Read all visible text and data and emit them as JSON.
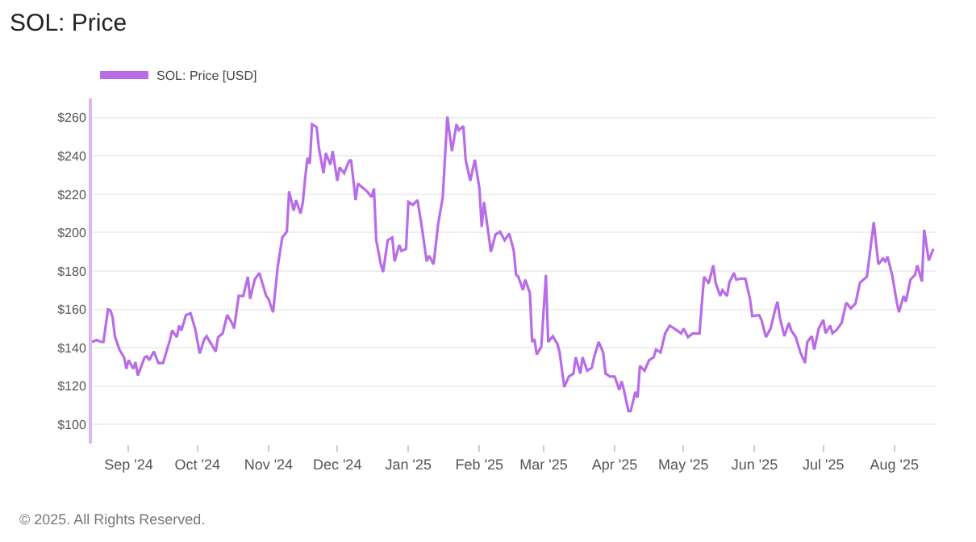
{
  "chart_data": {
    "type": "line",
    "title": "SOL: Price",
    "legend": "top left",
    "grid": "y",
    "marker": "none",
    "line_style": "solid",
    "annotations": [
      "© 2025. All Rights Reserved."
    ],
    "xlim": [
      "2024-08-16",
      "2025-08-19"
    ],
    "xticks": [
      {
        "value": "2024-09-01",
        "label": "Sep '24"
      },
      {
        "value": "2024-10-01",
        "label": "Oct '24"
      },
      {
        "value": "2024-11-01",
        "label": "Nov '24"
      },
      {
        "value": "2024-12-01",
        "label": "Dec '24"
      },
      {
        "value": "2025-01-01",
        "label": "Jan '25"
      },
      {
        "value": "2025-02-01",
        "label": "Feb '25"
      },
      {
        "value": "2025-03-01",
        "label": "Mar '25"
      },
      {
        "value": "2025-04-01",
        "label": "Apr '25"
      },
      {
        "value": "2025-05-01",
        "label": "May '25"
      },
      {
        "value": "2025-06-01",
        "label": "Jun '25"
      },
      {
        "value": "2025-07-01",
        "label": "Jul '25"
      },
      {
        "value": "2025-08-01",
        "label": "Aug '25"
      }
    ],
    "ylim": [
      90,
      270
    ],
    "yticks": [
      {
        "value": 100,
        "label": "$100"
      },
      {
        "value": 120,
        "label": "$120"
      },
      {
        "value": 140,
        "label": "$140"
      },
      {
        "value": 160,
        "label": "$160"
      },
      {
        "value": 180,
        "label": "$180"
      },
      {
        "value": 200,
        "label": "$200"
      },
      {
        "value": 220,
        "label": "$220"
      },
      {
        "value": 240,
        "label": "$240"
      },
      {
        "value": 260,
        "label": "$260"
      }
    ],
    "x": [
      "2024-08-16",
      "2024-08-18",
      "2024-08-20",
      "2024-08-21",
      "2024-08-23",
      "2024-08-24",
      "2024-08-25",
      "2024-08-26",
      "2024-08-28",
      "2024-08-30",
      "2024-08-31",
      "2024-09-01",
      "2024-09-03",
      "2024-09-04",
      "2024-09-05",
      "2024-09-08",
      "2024-09-09",
      "2024-09-10",
      "2024-09-12",
      "2024-09-14",
      "2024-09-16",
      "2024-09-19",
      "2024-09-20",
      "2024-09-22",
      "2024-09-23",
      "2024-09-24",
      "2024-09-26",
      "2024-09-28",
      "2024-09-30",
      "2024-10-02",
      "2024-10-04",
      "2024-10-05",
      "2024-10-07",
      "2024-10-09",
      "2024-10-10",
      "2024-10-12",
      "2024-10-14",
      "2024-10-16",
      "2024-10-17",
      "2024-10-19",
      "2024-10-21",
      "2024-10-23",
      "2024-10-24",
      "2024-10-26",
      "2024-10-28",
      "2024-10-31",
      "2024-11-01",
      "2024-11-03",
      "2024-11-05",
      "2024-11-07",
      "2024-11-09",
      "2024-11-10",
      "2024-11-12",
      "2024-11-13",
      "2024-11-15",
      "2024-11-16",
      "2024-11-17",
      "2024-11-18",
      "2024-11-19",
      "2024-11-20",
      "2024-11-22",
      "2024-11-23",
      "2024-11-25",
      "2024-11-26",
      "2024-11-28",
      "2024-11-29",
      "2024-12-01",
      "2024-12-02",
      "2024-12-04",
      "2024-12-06",
      "2024-12-07",
      "2024-12-09",
      "2024-12-10",
      "2024-12-12",
      "2024-12-14",
      "2024-12-16",
      "2024-12-17",
      "2024-12-18",
      "2024-12-20",
      "2024-12-21",
      "2024-12-23",
      "2024-12-25",
      "2024-12-26",
      "2024-12-28",
      "2024-12-29",
      "2024-12-31",
      "2025-01-01",
      "2025-01-03",
      "2025-01-05",
      "2025-01-07",
      "2025-01-09",
      "2025-01-10",
      "2025-01-12",
      "2025-01-14",
      "2025-01-16",
      "2025-01-18",
      "2025-01-20",
      "2025-01-22",
      "2025-01-23",
      "2025-01-25",
      "2025-01-26",
      "2025-01-28",
      "2025-01-30",
      "2025-02-01",
      "2025-02-02",
      "2025-02-03",
      "2025-02-05",
      "2025-02-06",
      "2025-02-08",
      "2025-02-10",
      "2025-02-12",
      "2025-02-14",
      "2025-02-16",
      "2025-02-17",
      "2025-02-18",
      "2025-02-20",
      "2025-02-21",
      "2025-02-23",
      "2025-02-24",
      "2025-02-25",
      "2025-02-26",
      "2025-02-28",
      "2025-03-02",
      "2025-03-03",
      "2025-03-05",
      "2025-03-07",
      "2025-03-08",
      "2025-03-10",
      "2025-03-12",
      "2025-03-14",
      "2025-03-15",
      "2025-03-17",
      "2025-03-18",
      "2025-03-20",
      "2025-03-22",
      "2025-03-23",
      "2025-03-25",
      "2025-03-27",
      "2025-03-28",
      "2025-03-30",
      "2025-04-01",
      "2025-04-03",
      "2025-04-04",
      "2025-04-05",
      "2025-04-07",
      "2025-04-08",
      "2025-04-10",
      "2025-04-11",
      "2025-04-12",
      "2025-04-14",
      "2025-04-16",
      "2025-04-18",
      "2025-04-19",
      "2025-04-21",
      "2025-04-23",
      "2025-04-25",
      "2025-04-27",
      "2025-04-30",
      "2025-05-01",
      "2025-05-03",
      "2025-05-05",
      "2025-05-08",
      "2025-05-09",
      "2025-05-10",
      "2025-05-12",
      "2025-05-14",
      "2025-05-15",
      "2025-05-17",
      "2025-05-18",
      "2025-05-20",
      "2025-05-21",
      "2025-05-23",
      "2025-05-24",
      "2025-05-26",
      "2025-05-28",
      "2025-05-30",
      "2025-05-31",
      "2025-06-03",
      "2025-06-04",
      "2025-06-06",
      "2025-06-08",
      "2025-06-10",
      "2025-06-11",
      "2025-06-12",
      "2025-06-14",
      "2025-06-16",
      "2025-06-17",
      "2025-06-19",
      "2025-06-21",
      "2025-06-23",
      "2025-06-24",
      "2025-06-26",
      "2025-06-27",
      "2025-06-29",
      "2025-07-01",
      "2025-07-02",
      "2025-07-04",
      "2025-07-05",
      "2025-07-07",
      "2025-07-09",
      "2025-07-11",
      "2025-07-13",
      "2025-07-15",
      "2025-07-17",
      "2025-07-20",
      "2025-07-21",
      "2025-07-23",
      "2025-07-25",
      "2025-07-27",
      "2025-07-28",
      "2025-07-29",
      "2025-07-31",
      "2025-08-02",
      "2025-08-03",
      "2025-08-05",
      "2025-08-06",
      "2025-08-08",
      "2025-08-10",
      "2025-08-11",
      "2025-08-13",
      "2025-08-14",
      "2025-08-16",
      "2025-08-18"
    ],
    "series": [
      {
        "name": "SOL: Price [USD]",
        "color": "#b86ce8",
        "values": [
          143,
          144,
          143,
          143,
          160,
          159.5,
          156,
          146,
          139,
          135,
          129,
          133.5,
          129,
          132.5,
          125.5,
          135,
          135.5,
          133.5,
          138,
          132,
          132,
          144,
          149,
          145.5,
          151.5,
          149,
          157,
          158,
          150,
          137,
          144.5,
          146,
          142,
          138,
          145.5,
          147.5,
          157,
          153,
          150,
          167,
          167,
          177,
          165.5,
          175.5,
          179,
          167,
          165.5,
          158.5,
          182,
          197.5,
          200.5,
          221.5,
          211.5,
          217,
          210,
          216,
          228.5,
          239,
          236,
          256.5,
          255,
          244,
          231,
          241.5,
          235.5,
          242.5,
          227,
          234,
          231,
          237,
          238,
          217,
          225.5,
          223.5,
          221.5,
          218.5,
          223,
          196,
          183.5,
          179.5,
          196,
          197.5,
          185,
          193.5,
          190.5,
          191.5,
          216,
          214.5,
          217,
          202,
          185,
          188,
          183.5,
          204.5,
          218.5,
          260.5,
          242.5,
          256.5,
          253.5,
          255.5,
          238,
          227,
          238,
          223,
          203,
          216,
          199,
          190,
          199,
          200.5,
          196,
          199.5,
          190.5,
          178,
          177,
          170,
          175.5,
          168.5,
          143,
          144.5,
          136.5,
          140.5,
          178,
          143,
          146,
          142,
          137.5,
          119.5,
          125,
          126.5,
          135,
          126.5,
          135,
          128,
          129.5,
          135,
          143,
          137.5,
          126.5,
          125,
          125,
          118,
          122.5,
          118,
          107,
          107,
          117,
          114,
          130.5,
          128,
          133.5,
          135,
          139,
          137.5,
          147.5,
          151.5,
          150,
          147.5,
          150,
          145.5,
          147.5,
          147.5,
          163,
          177,
          173.5,
          183,
          174,
          167,
          170,
          167,
          174,
          179,
          175.5,
          176,
          176,
          165.5,
          156.5,
          157,
          154.5,
          145.5,
          150,
          160,
          164,
          156,
          146,
          153,
          149,
          145.5,
          137.5,
          132,
          143,
          146,
          139,
          150,
          154.5,
          147.5,
          151.5,
          147.5,
          149.5,
          153,
          163.5,
          160.5,
          163,
          174,
          177,
          186.5,
          205.5,
          183.5,
          186.5,
          185,
          187.5,
          178,
          164,
          158.5,
          167,
          164,
          175.5,
          178,
          183,
          174.5,
          201.5,
          185.5,
          191.5
        ]
      }
    ]
  }
}
